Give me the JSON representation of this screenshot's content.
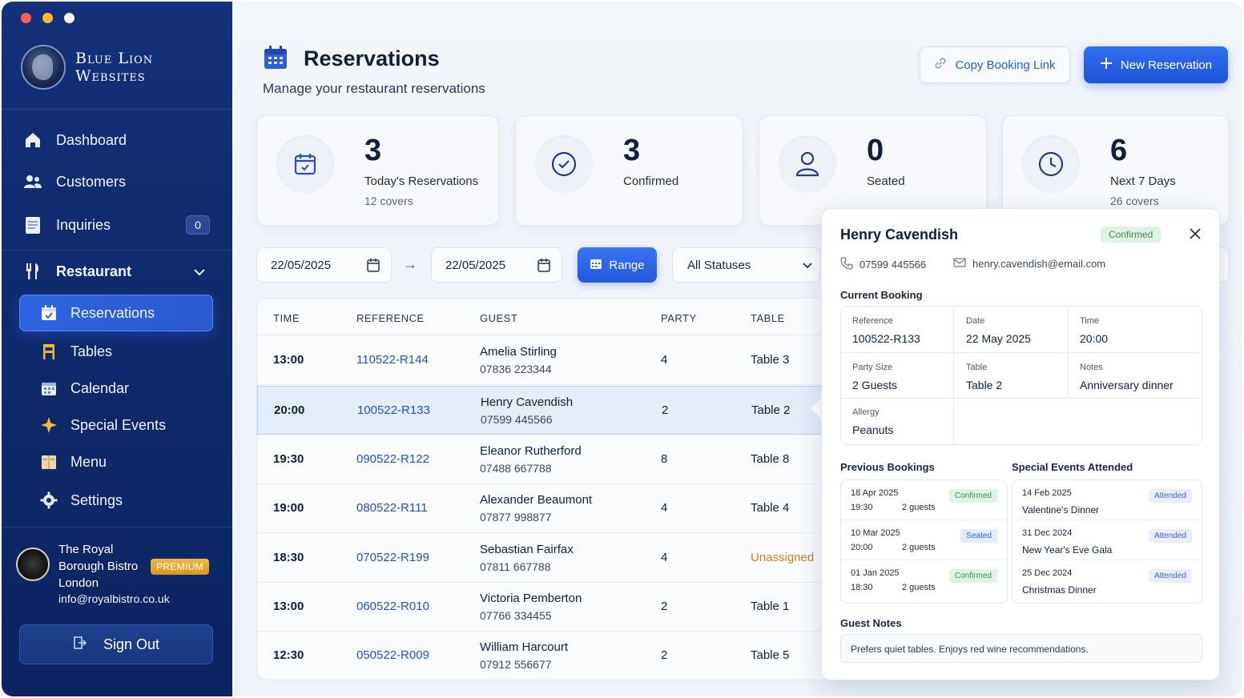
{
  "brand": {
    "line1": "Blue Lion",
    "line2": "Websites"
  },
  "nav": {
    "dashboard": "Dashboard",
    "customers": "Customers",
    "inquiries": "Inquiries",
    "inquiries_count": "0",
    "restaurant": "Restaurant",
    "sub": {
      "reservations": "Reservations",
      "tables": "Tables",
      "calendar": "Calendar",
      "special_events": "Special Events",
      "menu": "Menu",
      "settings": "Settings"
    }
  },
  "account": {
    "name": "The Royal Borough Bistro London",
    "plan": "PREMIUM",
    "email": "info@royalbistro.co.uk",
    "signout": "Sign Out"
  },
  "header": {
    "title": "Reservations",
    "subtitle": "Manage your restaurant reservations",
    "copy_link": "Copy Booking Link",
    "new_reservation": "New Reservation"
  },
  "stats": [
    {
      "value": "3",
      "label": "Today's Reservations",
      "sub": "12 covers"
    },
    {
      "value": "3",
      "label": "Confirmed",
      "sub": ""
    },
    {
      "value": "0",
      "label": "Seated",
      "sub": ""
    },
    {
      "value": "6",
      "label": "Next 7 Days",
      "sub": "26 covers"
    }
  ],
  "filters": {
    "from": "22/05/2025",
    "to": "22/05/2025",
    "arrow": "→",
    "range": "Range",
    "status": "All Statuses"
  },
  "table": {
    "headers": [
      "TIME",
      "REFERENCE",
      "GUEST",
      "PARTY",
      "TABLE"
    ],
    "rows": [
      {
        "time": "13:00",
        "ref": "110522-R144",
        "name": "Amelia Stirling",
        "phone": "07836 223344",
        "party": "4",
        "table": "Table 3"
      },
      {
        "time": "20:00",
        "ref": "100522-R133",
        "name": "Henry Cavendish",
        "phone": "07599 445566",
        "party": "2",
        "table": "Table 2"
      },
      {
        "time": "19:30",
        "ref": "090522-R122",
        "name": "Eleanor Rutherford",
        "phone": "07488 667788",
        "party": "8",
        "table": "Table 8"
      },
      {
        "time": "19:00",
        "ref": "080522-R111",
        "name": "Alexander Beaumont",
        "phone": "07877 998877",
        "party": "4",
        "table": "Table 4"
      },
      {
        "time": "18:30",
        "ref": "070522-R199",
        "name": "Sebastian Fairfax",
        "phone": "07811 667788",
        "party": "4",
        "table": "Unassigned"
      },
      {
        "time": "13:00",
        "ref": "060522-R010",
        "name": "Victoria Pemberton",
        "phone": "07766 334455",
        "party": "2",
        "table": "Table 1"
      },
      {
        "time": "12:30",
        "ref": "050522-R009",
        "name": "William Harcourt",
        "phone": "07912 556677",
        "party": "2",
        "table": "Table 5"
      }
    ]
  },
  "detail": {
    "name": "Henry Cavendish",
    "status": "Confirmed",
    "phone": "07599 445566",
    "email": "henry.cavendish@email.com",
    "current_title": "Current Booking",
    "current": {
      "reference_k": "Reference",
      "reference_v": "100522-R133",
      "date_k": "Date",
      "date_v": "22 May 2025",
      "time_k": "Time",
      "time_v": "20:00",
      "party_k": "Party Size",
      "party_v": "2 Guests",
      "table_k": "Table",
      "table_v": "Table 2",
      "notes_k": "Notes",
      "notes_v": "Anniversary dinner",
      "allergy_k": "Allergy",
      "allergy_v": "Peanuts"
    },
    "previous_title": "Previous Bookings",
    "previous": [
      {
        "date": "18 Apr 2025",
        "time": "19:30",
        "guests": "2 guests",
        "status": "Confirmed"
      },
      {
        "date": "10 Mar 2025",
        "time": "20:00",
        "guests": "2 guests",
        "status": "Seated"
      },
      {
        "date": "01 Jan 2025",
        "time": "18:30",
        "guests": "2 guests",
        "status": "Confirmed"
      }
    ],
    "events_title": "Special Events Attended",
    "events": [
      {
        "date": "14 Feb 2025",
        "name": "Valentine's Dinner",
        "status": "Attended"
      },
      {
        "date": "31 Dec 2024",
        "name": "New Year's Eve Gala",
        "status": "Attended"
      },
      {
        "date": "25 Dec 2024",
        "name": "Christmas Dinner",
        "status": "Attended"
      }
    ],
    "notes_title": "Guest Notes",
    "notes": "Prefers quiet tables. Enjoys red wine recommendations."
  },
  "colors": {
    "accent": "#2a5ad7",
    "sidebar": "#12307a",
    "warning": "#e07b12",
    "success": "#3f8a53"
  }
}
